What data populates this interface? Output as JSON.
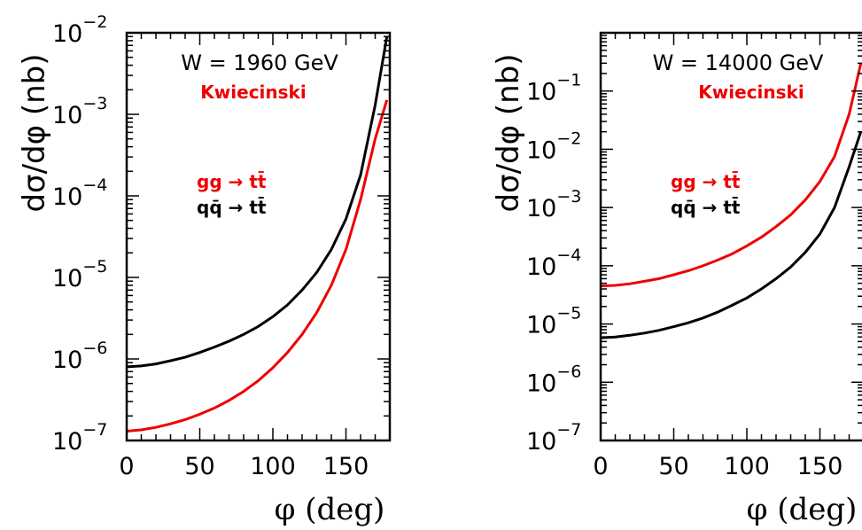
{
  "chart_data": [
    {
      "type": "line",
      "title": "W = 1960 GeV",
      "subtitle": "Kwiecinski",
      "xlabel": "φ (deg)",
      "ylabel": "dσ/dφ (nb)",
      "xlim": [
        0,
        180
      ],
      "ylim": [
        1e-07,
        0.01
      ],
      "yscale": "log",
      "xticks": [
        "0",
        "50",
        "100",
        "150"
      ],
      "yticks": [
        {
          "base": "10",
          "exp": "−7"
        },
        {
          "base": "10",
          "exp": "−6"
        },
        {
          "base": "10",
          "exp": "−5"
        },
        {
          "base": "10",
          "exp": "−4"
        },
        {
          "base": "10",
          "exp": "−3"
        },
        {
          "base": "10",
          "exp": "−2"
        }
      ],
      "series": [
        {
          "name": "gg → tt̄",
          "color": "#ee0000",
          "x": [
            0,
            10,
            20,
            30,
            40,
            50,
            60,
            70,
            80,
            90,
            100,
            110,
            120,
            130,
            140,
            150,
            160,
            170,
            178
          ],
          "y": [
            1.3e-07,
            1.35e-07,
            1.45e-07,
            1.6e-07,
            1.8e-07,
            2.1e-07,
            2.5e-07,
            3.1e-07,
            4e-07,
            5.4e-07,
            7.8e-07,
            1.2e-06,
            2e-06,
            3.7e-06,
            8e-06,
            2.2e-05,
            9e-05,
            0.0005,
            0.0015
          ]
        },
        {
          "name": "qq̄ → tt̄",
          "color": "#000000",
          "x": [
            0,
            10,
            20,
            30,
            40,
            50,
            60,
            70,
            80,
            90,
            100,
            110,
            120,
            130,
            140,
            150,
            160,
            170,
            178
          ],
          "y": [
            8e-07,
            8.2e-07,
            8.7e-07,
            9.5e-07,
            1.05e-06,
            1.2e-06,
            1.4e-06,
            1.65e-06,
            2e-06,
            2.5e-06,
            3.3e-06,
            4.6e-06,
            7e-06,
            1.15e-05,
            2.2e-05,
            5.2e-05,
            0.00018,
            0.0013,
            0.009
          ]
        }
      ],
      "annotation_colors": {
        "title": "#000000",
        "subtitle": "#ee0000"
      }
    },
    {
      "type": "line",
      "title": "W = 14000 GeV",
      "subtitle": "Kwiecinski",
      "xlabel": "φ (deg)",
      "ylabel": "dσ/dφ (nb)",
      "xlim": [
        0,
        180
      ],
      "ylim": [
        1e-07,
        1
      ],
      "yscale": "log",
      "xticks": [
        "0",
        "50",
        "100",
        "150"
      ],
      "yticks": [
        {
          "base": "10",
          "exp": "−7"
        },
        {
          "base": "10",
          "exp": "−6"
        },
        {
          "base": "10",
          "exp": "−5"
        },
        {
          "base": "10",
          "exp": "−4"
        },
        {
          "base": "10",
          "exp": "−3"
        },
        {
          "base": "10",
          "exp": "−2"
        },
        {
          "base": "10",
          "exp": "−1"
        }
      ],
      "series": [
        {
          "name": "gg → tt̄",
          "color": "#ee0000",
          "x": [
            0,
            10,
            20,
            30,
            40,
            50,
            60,
            70,
            80,
            90,
            100,
            110,
            120,
            130,
            140,
            150,
            160,
            170,
            178
          ],
          "y": [
            4.5e-05,
            4.6e-05,
            4.9e-05,
            5.4e-05,
            6e-05,
            7e-05,
            8.2e-05,
            0.0001,
            0.000125,
            0.00016,
            0.00022,
            0.00031,
            0.00047,
            0.00075,
            0.00135,
            0.0028,
            0.0075,
            0.04,
            0.3
          ]
        },
        {
          "name": "qq̄ → tt̄",
          "color": "#000000",
          "x": [
            0,
            10,
            20,
            30,
            40,
            50,
            60,
            70,
            80,
            90,
            100,
            110,
            120,
            130,
            140,
            150,
            160,
            170,
            178
          ],
          "y": [
            5.8e-06,
            6e-06,
            6.4e-06,
            7e-06,
            7.8e-06,
            9e-06,
            1.05e-05,
            1.27e-05,
            1.6e-05,
            2.1e-05,
            2.8e-05,
            4e-05,
            6e-05,
            9.5e-05,
            0.00017,
            0.00035,
            0.001,
            0.005,
            0.02
          ]
        }
      ],
      "annotation_colors": {
        "title": "#000000",
        "subtitle": "#ee0000"
      }
    }
  ]
}
